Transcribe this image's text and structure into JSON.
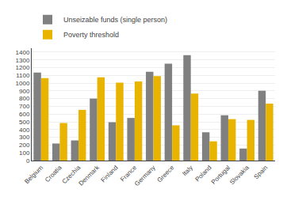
{
  "chart_data": {
    "type": "bar",
    "categories": [
      "Belgium",
      "Croatia",
      "Czechia",
      "Denmark",
      "Finland",
      "France",
      "Germany",
      "Greece",
      "Italy",
      "Poland",
      "Portugal",
      "Slovakia",
      "Spain"
    ],
    "series": [
      {
        "name": "Unseizable funds (single person)",
        "color": "#808080",
        "values": [
          1135,
          220,
          260,
          800,
          495,
          550,
          1145,
          1250,
          1360,
          365,
          585,
          155,
          900
        ]
      },
      {
        "name": "Poverty threshold",
        "color": "#e8b400",
        "values": [
          1065,
          485,
          655,
          1075,
          1005,
          1020,
          1090,
          455,
          865,
          248,
          535,
          525,
          735
        ]
      }
    ],
    "ylim": [
      0,
      1450
    ],
    "yticks": [
      0,
      100,
      200,
      300,
      400,
      500,
      600,
      700,
      800,
      900,
      1000,
      1100,
      1200,
      1300,
      1400
    ],
    "grid": true,
    "legend": "upper left"
  }
}
